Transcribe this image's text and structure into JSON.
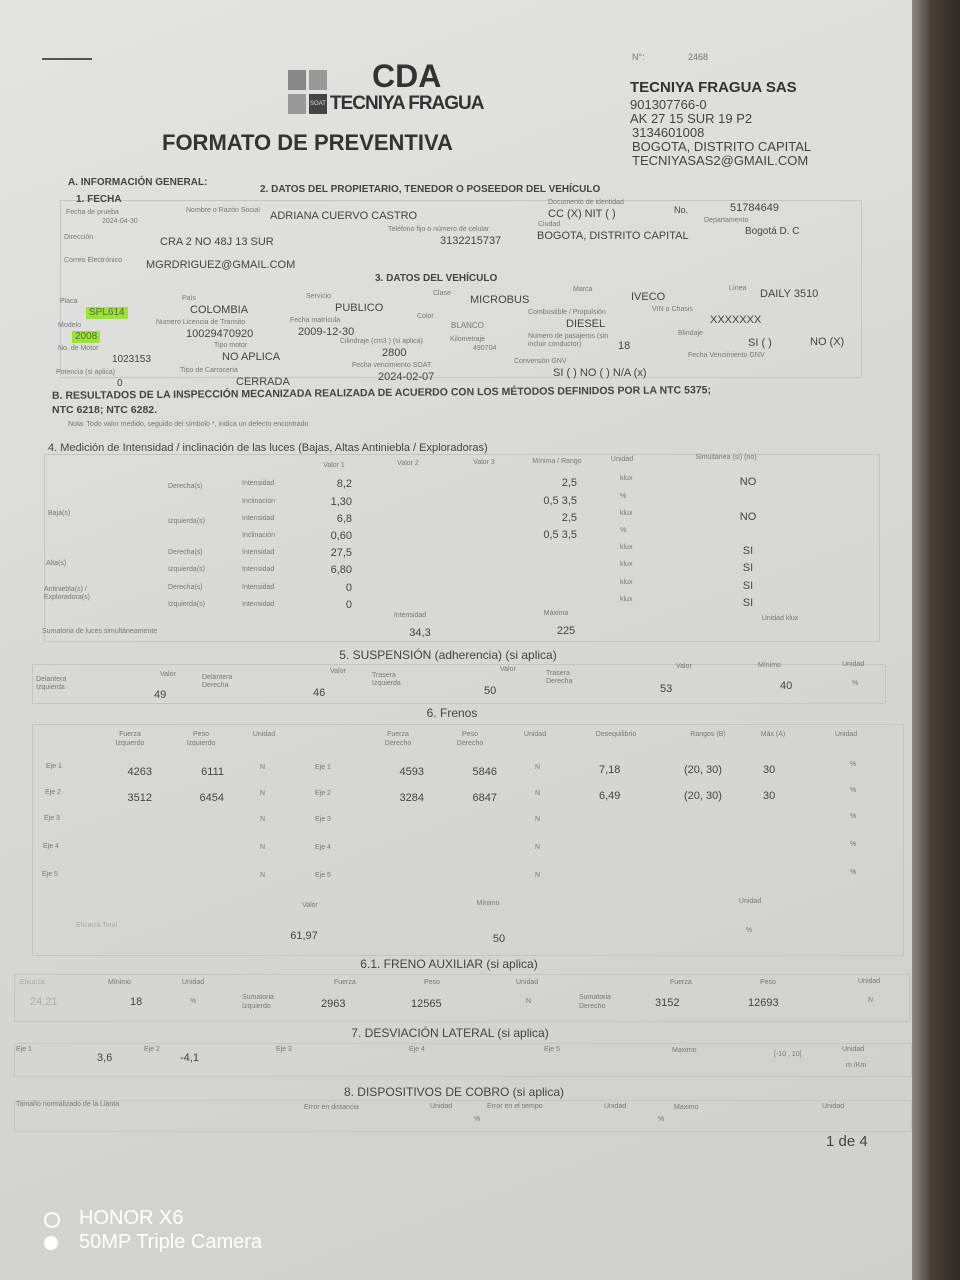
{
  "header": {
    "number_label": "N°:",
    "number": "2468",
    "logo_cda": "CDA",
    "logo_name": "TECNIYA FRAGUA",
    "logo_badge": "SOAT",
    "title": "FORMATO DE PREVENTIVA"
  },
  "company": {
    "name": "TECNIYA FRAGUA SAS",
    "nit": "901307766-0",
    "address": "AK 27 15 SUR 19 P2",
    "phone": "3134601008",
    "city": "BOGOTA, DISTRITO CAPITAL",
    "email": "TECNIYASAS2@GMAIL.COM"
  },
  "sec_a": {
    "title": "A. INFORMACIÓN GENERAL:",
    "fecha_title": "1. FECHA",
    "fecha_label": "Fecha de prueba",
    "fecha": "2024-04-30"
  },
  "owner": {
    "title": "2. DATOS DEL PROPIETARIO, TENEDOR O POSEEDOR DEL VEHÍCULO",
    "name_label": "Nombre o Razón Social",
    "name": "ADRIANA CUERVO CASTRO",
    "doc_label": "Documento de identidad",
    "doc_type": "CC (X)   NIT (   )",
    "no_label": "No.",
    "no": "51784649",
    "dir_label": "Dirección",
    "dir": "CRA 2 NO 48J 13  SUR",
    "tel_label": "Teléfono fijo o número de celular",
    "tel": "3132215737",
    "city_label": "Ciudad",
    "city": "BOGOTA, DISTRITO CAPITAL",
    "dept_label": "Departamento",
    "dept": "Bogotá D. C",
    "email_label": "Correo Electrónico",
    "email": "MGRDRIGUEZ@GMAIL.COM"
  },
  "vehicle": {
    "title": "3. DATOS DEL VEHÍCULO",
    "placa_label": "Placa",
    "placa": "SPL614",
    "pais_label": "País",
    "pais": "COLOMBIA",
    "servicio_label": "Servicio",
    "servicio": "PUBLICO",
    "clase_label": "Clase",
    "clase": "MICROBUS",
    "marca_label": "Marca",
    "marca": "IVECO",
    "linea_label": "Línea",
    "linea": "DAILY 3510",
    "modelo_label": "Modelo",
    "modelo": "2008",
    "licencia_label": "Numero Licencia de Transito",
    "licencia": "10029470920",
    "matricula_label": "Fecha matrícula",
    "matricula": "2009-12-30",
    "color_label": "Color",
    "color": "BLANCO",
    "combustible_label": "Combustible / Propulsión",
    "combustible": "DIESEL",
    "vin_label": "VIN o Chasis",
    "vin": "XXXXXXX",
    "motor_label": "No. de Motor",
    "motor": "1023153",
    "tipo_motor_label": "Tipo motor",
    "tipo_motor": "NO APLICA",
    "cilindraje_label": "Cilindraje (cm3 ) (si aplica)",
    "cilindraje": "2800",
    "km_label": "Kilometraje",
    "km": "490704",
    "pasajeros_label": "Numero de pasajeros (sin incluir conductor)",
    "pasajeros": "18",
    "blindaje_label": "Blindaje",
    "blindaje_si": "SI (   )",
    "blindaje_no": "NO (X)",
    "potencia_label": "Potencia (si aplica)",
    "potencia": "0",
    "carroceria_label": "Tipo de Carroceria",
    "carroceria": "CERRADA",
    "soat_label": "Fecha vencimiento SOAT",
    "soat": "2024-02-07",
    "gnv_label": "Conversión GNV",
    "gnv": "SI (   ) NO (   ) N/A (x)",
    "gnv_venc_label": "Fecha Vencimiento GNV",
    "highlight_color": "#9be23a"
  },
  "sec_b": {
    "title": "B. RESULTADOS DE LA INSPECCIÓN MECANIZADA REALIZADA DE ACUERDO CON LOS MÉTODOS DEFINIDOS POR LA NTC 5375;",
    "title2": "NTC 6218; NTC 6282.",
    "note": "Nota: Todo valor medido, seguido del símbolo *, indica un defecto encontrado"
  },
  "lights": {
    "title": "4. Medición de Intensidad / inclinación de las luces (Bajas, Altas Antiniebla / Exploradoras)",
    "headers": [
      "Valor 1",
      "Valor 2",
      "Valor 3",
      "Mínima / Rango",
      "Unidad",
      "Simultanea (si) (no)"
    ],
    "groups": [
      "Baja(s)",
      "Alta(s)",
      "Antiniebla(s) / Exploradora(s)"
    ],
    "rows": [
      {
        "side": "Derecha(s)",
        "type": "Intensidad",
        "v1": "8,2",
        "min": "2,5",
        "unit": "klux",
        "sim": "NO"
      },
      {
        "side": "",
        "type": "Inclinación",
        "v1": "1,30",
        "min": "0,5   3,5",
        "unit": "%",
        "sim": ""
      },
      {
        "side": "Izquierda(s)",
        "type": "Intensidad",
        "v1": "6,8",
        "min": "2,5",
        "unit": "klux",
        "sim": "NO"
      },
      {
        "side": "",
        "type": "Inclinación",
        "v1": "0,60",
        "min": "0,5   3,5",
        "unit": "%",
        "sim": ""
      },
      {
        "side": "Derecha(s)",
        "type": "Intensidad",
        "v1": "27,5",
        "min": "",
        "unit": "klux",
        "sim": "SI"
      },
      {
        "side": "Izquierda(s)",
        "type": "Intensidad",
        "v1": "6,80",
        "min": "",
        "unit": "klux",
        "sim": "SI"
      },
      {
        "side": "Derecha(s)",
        "type": "Intensidad",
        "v1": "0",
        "min": "",
        "unit": "klux",
        "sim": "SI"
      },
      {
        "side": "Izquierda(s)",
        "type": "Intensidad",
        "v1": "0",
        "min": "",
        "unit": "klux",
        "sim": "SI"
      }
    ],
    "sum_label": "Sumatoria de luces simultáneamente",
    "intensidad_label": "Intensidad",
    "intensidad": "34,3",
    "maxima_label": "Máxima",
    "maxima": "225",
    "unit_label": "Unidad klux"
  },
  "suspension": {
    "title": "5. SUSPENSIÓN (adherencia) (si aplica)",
    "valor_label": "Valor",
    "items": [
      {
        "label": "Delantera Izquierda",
        "value": "49"
      },
      {
        "label": "Delantera Derecha",
        "value": "46"
      },
      {
        "label": "Trasera Izquierda",
        "value": "50"
      },
      {
        "label": "Trasera Derecha",
        "value": "53"
      }
    ],
    "minimo_label": "Mínimo",
    "minimo": "40",
    "unidad_label": "Unidad",
    "unidad": "%"
  },
  "brakes": {
    "title": "6. Frenos",
    "headers": [
      "Fuerza Izquierdo",
      "Peso Izquierdo",
      "Unidad",
      "Fuerza Derecho",
      "Peso Derecho",
      "Unidad",
      "Desequilibrio",
      "Rangos (B)",
      "Máx (A)",
      "Unidad"
    ],
    "rows": [
      {
        "eje": "Eje 1",
        "fi": "4263",
        "pi": "6111",
        "u": "N",
        "fd": "4593",
        "pd": "5846",
        "u2": "N",
        "des": "7,18",
        "rango": "(20, 30)",
        "max": "30",
        "u3": "%"
      },
      {
        "eje": "Eje 2",
        "fi": "3512",
        "pi": "6454",
        "u": "N",
        "fd": "3284",
        "pd": "6847",
        "u2": "N",
        "des": "6,49",
        "rango": "(20, 30)",
        "max": "30",
        "u3": "%"
      },
      {
        "eje": "Eje 3",
        "fi": "",
        "pi": "",
        "u": "N",
        "fd": "",
        "pd": "",
        "u2": "N",
        "des": "",
        "rango": "",
        "max": "",
        "u3": "%"
      },
      {
        "eje": "Eje 4",
        "fi": "",
        "pi": "",
        "u": "N",
        "fd": "",
        "pd": "",
        "u2": "N",
        "des": "",
        "rango": "",
        "max": "",
        "u3": "%"
      },
      {
        "eje": "Eje 5",
        "fi": "",
        "pi": "",
        "u": "N",
        "fd": "",
        "pd": "",
        "u2": "N",
        "des": "",
        "rango": "",
        "max": "",
        "u3": "%"
      }
    ],
    "total_label": "Eficacia Total",
    "valor_label": "Valor",
    "valor": "61,97",
    "minimo_label": "Mínimo",
    "minimo": "50",
    "unidad_label": "Unidad",
    "unidad": "%"
  },
  "aux": {
    "title": "6.1. FRENO AUXILIAR (si aplica)",
    "eficacia_label": "Eficacia",
    "eficacia": "24,21",
    "minimo_label": "Mínimo",
    "minimo": "18",
    "unidad_label": "Unidad",
    "unidad": "%",
    "fuerza_label": "Fuerza",
    "peso_label": "Peso",
    "izq_label": "Sumatoria Izquierdo",
    "izq_fuerza": "2963",
    "izq_peso": "12565",
    "izq_unidad": "N",
    "der_label": "Sumatoria Derecho",
    "der_fuerza": "3152",
    "der_peso": "12693",
    "der_unidad": "N"
  },
  "deviation": {
    "title": "7. DESVIACIÓN LATERAL (si aplica)",
    "eje1_label": "Eje 1",
    "eje1": "3,6",
    "eje2_label": "Eje 2",
    "eje2": "-4,1",
    "eje3_label": "Eje 3",
    "eje4_label": "Eje 4",
    "eje5_label": "Eje 5",
    "max_label": "Maximo",
    "max": "[-10 , 10]",
    "unidad_label": "Unidad",
    "unidad": "m /Km"
  },
  "cobro": {
    "title": "8. DISPOSITIVOS DE COBRO (si aplica)",
    "llanta_label": "Tamaño normalizado de la Llanta",
    "dist_label": "Error en distancia",
    "unidad_label": "Unidad",
    "dist_unit": "%",
    "tiempo_label": "Error en el tiempo",
    "tiempo_unit": "%",
    "max_label": "Maximo"
  },
  "page": "1  de  4",
  "watermark": {
    "line1": "HONOR X6",
    "line2": "50MP Triple Camera"
  }
}
